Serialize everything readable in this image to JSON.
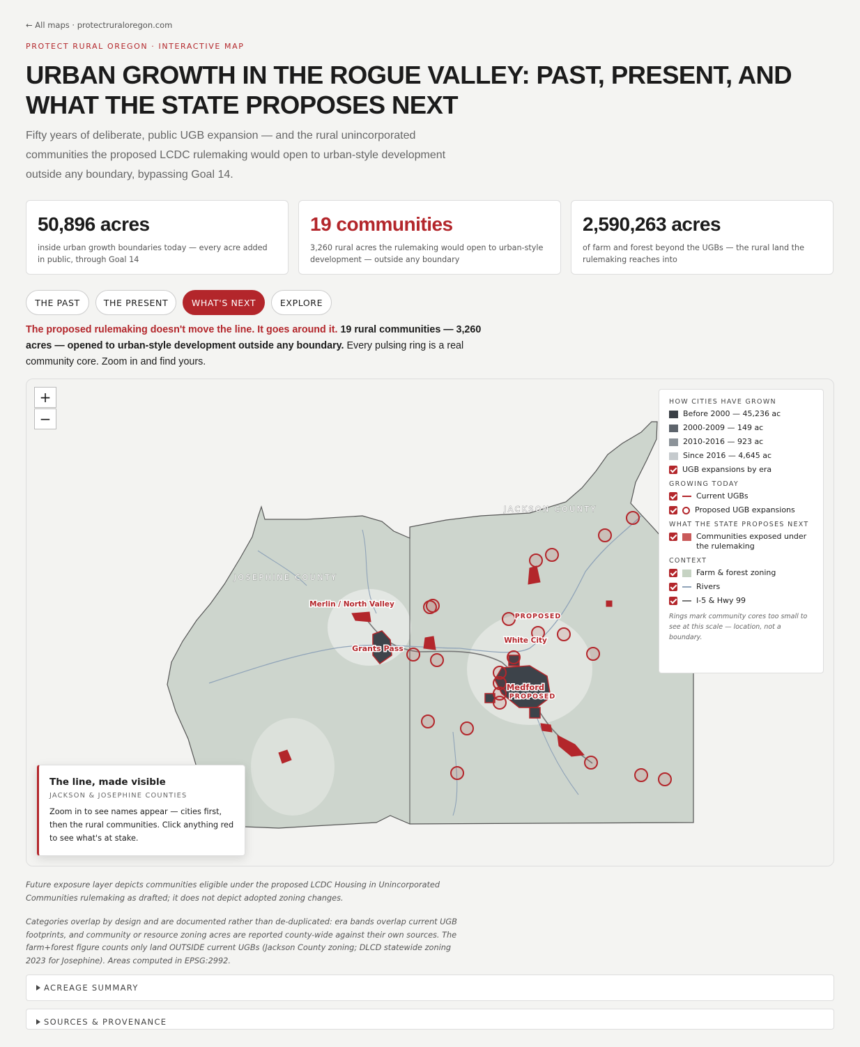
{
  "nav": {
    "back": "← All maps · protectruraloregon.com"
  },
  "header": {
    "kicker": "PROTECT RURAL OREGON · INTERACTIVE MAP",
    "title": "URBAN GROWTH IN THE ROGUE VALLEY: PAST, PRESENT, AND WHAT THE STATE PROPOSES NEXT",
    "subtitle": "Fifty years of deliberate, public UGB expansion — and the rural unincorporated communities the proposed LCDC rulemaking would open to urban-style development outside any boundary, bypassing Goal 14."
  },
  "stats": [
    {
      "value": "50,896 acres",
      "text": "inside urban growth boundaries today — every acre added in public, through Goal 14"
    },
    {
      "value": "19 communities",
      "text": "3,260 rural acres the rulemaking would open to urban-style development — outside any boundary"
    },
    {
      "value": "2,590,263 acres",
      "text": "of farm and forest beyond the UGBs — the rural land the rulemaking reaches into"
    }
  ],
  "tabs": [
    "THE PAST",
    "THE PRESENT",
    "WHAT'S NEXT",
    "EXPLORE"
  ],
  "lede": {
    "highlight": "The proposed rulemaking doesn't move the line. It goes around it.",
    "bold": "19 rural communities — 3,260 acres — opened to urban-style development outside any boundary.",
    "rest": "Every pulsing ring is a real community core. Zoom in and find yours."
  },
  "map": {
    "zoom_in": "+",
    "zoom_out": "−",
    "labels": [
      "JOSEPHINE COUNTY",
      "JACKSON COUNTY",
      "Merlin / North Valley",
      "Grants Pass",
      "PROPOSED",
      "White City",
      "Medford",
      "PROPOSED"
    ],
    "legend": {
      "groups": [
        {
          "title": "HOW CITIES HAVE GROWN",
          "items": [
            "Before 2000 — 45,236 ac",
            "2000-2009 — 149 ac",
            "2010-2016 — 923 ac",
            "Since 2016 — 4,645 ac",
            "UGB expansions by era"
          ]
        },
        {
          "title": "GROWING TODAY",
          "items": [
            "Current UGBs",
            "Proposed UGB expansions"
          ]
        },
        {
          "title": "WHAT THE STATE PROPOSES NEXT",
          "items": [
            "Communities exposed under the rulemaking"
          ]
        },
        {
          "title": "CONTEXT",
          "items": [
            "Farm & forest zoning",
            "Rivers",
            "I-5 & Hwy 99"
          ]
        }
      ],
      "note": "Rings mark community cores too small to see at this scale — location, not a boundary."
    },
    "info": {
      "title": "The line, made visible",
      "subtitle": "JACKSON & JOSEPHINE COUNTIES",
      "text": "Zoom in to see names appear — cities first, then the rural communities. Click anything red to see what's at stake."
    }
  },
  "notes": [
    "Future exposure layer depicts communities eligible under the proposed LCDC Housing in Unincorporated Communities rulemaking as drafted; it does not depict adopted zoning changes.",
    "Categories overlap by design and are documented rather than de-duplicated: era bands overlap current UGB footprints, and community or resource zoning acres are reported county-wide against their own sources. The farm+forest figure counts only land OUTSIDE current UGBs (Jackson County zoning; DLCD statewide zoning 2023 for Josephine). Areas computed in EPSG:2992."
  ],
  "sections": [
    "ACREAGE SUMMARY",
    "SOURCES & PROVENANCE"
  ]
}
